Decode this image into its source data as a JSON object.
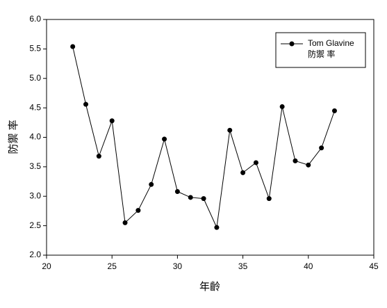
{
  "chart_data": {
    "type": "line",
    "xlabel": "年齡",
    "ylabel": "防禦 率",
    "x": [
      22,
      23,
      24,
      25,
      26,
      27,
      28,
      29,
      30,
      31,
      32,
      33,
      34,
      35,
      36,
      37,
      38,
      39,
      40,
      41,
      42
    ],
    "series": [
      {
        "name": "Tom Glavine",
        "color": "#000000",
        "values": [
          5.54,
          4.56,
          3.68,
          4.28,
          2.55,
          2.76,
          3.2,
          3.97,
          3.08,
          2.98,
          2.96,
          2.47,
          4.12,
          3.4,
          3.57,
          2.96,
          4.52,
          3.6,
          3.53,
          3.82,
          4.45
        ]
      }
    ],
    "legend_subtitle": "防禦 率",
    "legend": "upper right",
    "xlim": [
      20,
      45
    ],
    "xticks": [
      20,
      25,
      30,
      35,
      40,
      45
    ],
    "ylim": [
      2,
      6
    ],
    "yticks": [
      {
        "value": 2,
        "label": "2.0"
      },
      {
        "value": 2.5,
        "label": "2.5"
      },
      {
        "value": 3,
        "label": "3.0"
      },
      {
        "value": 3.5,
        "label": "3.5"
      },
      {
        "value": 4,
        "label": "4.0"
      },
      {
        "value": 4.5,
        "label": "4.5"
      },
      {
        "value": 5,
        "label": "5.0"
      },
      {
        "value": 5.5,
        "label": "5.5"
      },
      {
        "value": 6,
        "label": "6.0"
      }
    ]
  }
}
